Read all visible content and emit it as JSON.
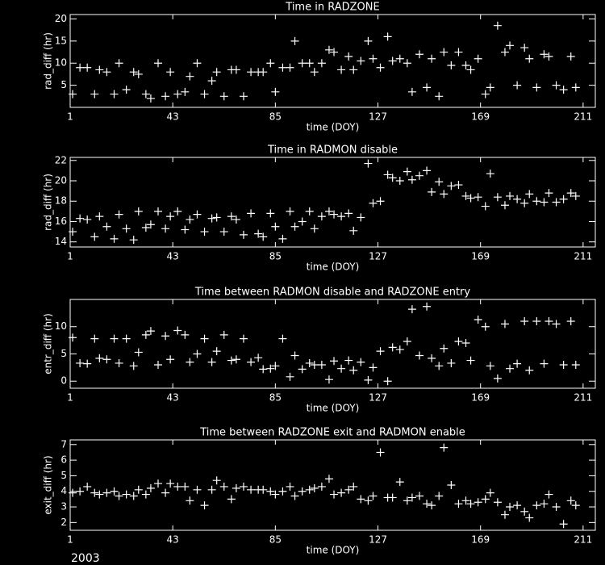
{
  "chart_data": [
    {
      "type": "scatter",
      "title": "Time in RADZONE",
      "x_label": "time (DOY)",
      "y_label": "rad_diff (hr)",
      "xlim": [
        1,
        216
      ],
      "xticks": [
        1,
        43,
        85,
        127,
        169,
        211
      ],
      "ylim": [
        0,
        21
      ],
      "yticks": [
        5,
        10,
        15,
        20
      ],
      "color": "#ffffff",
      "x": [
        2,
        5,
        8,
        11,
        13,
        16,
        19,
        21,
        24,
        27,
        29,
        32,
        34,
        37,
        40,
        42,
        45,
        48,
        50,
        53,
        56,
        59,
        61,
        64,
        67,
        69,
        72,
        75,
        78,
        80,
        83,
        85,
        88,
        91,
        93,
        96,
        99,
        101,
        104,
        107,
        109,
        112,
        115,
        117,
        120,
        123,
        125,
        128,
        131,
        133,
        136,
        139,
        141,
        144,
        147,
        149,
        152,
        154,
        157,
        160,
        163,
        165,
        168,
        171,
        173,
        176,
        179,
        181,
        184,
        187,
        189,
        192,
        195,
        197,
        200,
        203,
        206,
        208
      ],
      "values": [
        3,
        9,
        9,
        3,
        8.5,
        8,
        3,
        10,
        4,
        8,
        7.5,
        3,
        2,
        10,
        2.5,
        8,
        3,
        3.5,
        7,
        10,
        3,
        6,
        8,
        2.5,
        8.5,
        8.5,
        2.5,
        8,
        8,
        8,
        10,
        3.5,
        9,
        9,
        15,
        10,
        10,
        8,
        10,
        13,
        12.5,
        8.5,
        11.5,
        8.5,
        10.5,
        15,
        11,
        9,
        16,
        10.5,
        11,
        10,
        3.5,
        12,
        4.5,
        11,
        2.5,
        12.5,
        9.5,
        12.5,
        9.5,
        8.5,
        11,
        3,
        4.5,
        18.5,
        12.5,
        14,
        5,
        13.5,
        11,
        4.5,
        12,
        11.5,
        5,
        4,
        11.5,
        4.5
      ]
    },
    {
      "type": "scatter",
      "title": "Time in RADMON disable",
      "x_label": "time (DOY)",
      "y_label": "rad_diff (hr)",
      "xlim": [
        1,
        216
      ],
      "xticks": [
        1,
        43,
        85,
        127,
        169,
        211
      ],
      "ylim": [
        13.5,
        22.3
      ],
      "yticks": [
        14,
        16,
        18,
        20,
        22
      ],
      "color": "#ffffff",
      "x": [
        2,
        5,
        8,
        11,
        13,
        16,
        19,
        21,
        24,
        27,
        29,
        32,
        34,
        37,
        40,
        42,
        45,
        48,
        50,
        53,
        56,
        59,
        61,
        64,
        67,
        69,
        72,
        75,
        78,
        80,
        83,
        85,
        88,
        91,
        93,
        96,
        99,
        101,
        104,
        107,
        109,
        112,
        115,
        117,
        120,
        123,
        125,
        128,
        131,
        133,
        136,
        139,
        141,
        144,
        147,
        149,
        152,
        154,
        157,
        160,
        163,
        165,
        168,
        171,
        173,
        176,
        179,
        181,
        184,
        187,
        189,
        192,
        195,
        197,
        200,
        203,
        206,
        208
      ],
      "values": [
        15,
        16.3,
        16.2,
        14.5,
        16.5,
        15.5,
        14.3,
        16.7,
        15.3,
        14.2,
        17,
        15.4,
        15.7,
        17,
        15.3,
        16.5,
        17,
        15.2,
        16.2,
        16.7,
        15,
        16.3,
        16.4,
        15,
        16.5,
        16.2,
        14.7,
        16.8,
        14.8,
        14.5,
        16.8,
        15.5,
        14.3,
        17,
        15.5,
        16,
        17,
        15.3,
        16.5,
        17,
        16.7,
        16.5,
        16.8,
        15.1,
        16.4,
        21.7,
        17.8,
        18,
        20.6,
        20.3,
        20,
        20.9,
        20.1,
        20.5,
        21,
        18.9,
        19.9,
        18.7,
        19.5,
        19.6,
        18.5,
        18.3,
        18.4,
        17.5,
        20.7,
        18.4,
        17.6,
        18.5,
        18.2,
        17.8,
        18.7,
        18,
        17.9,
        18.8,
        17.9,
        18.2,
        18.8,
        18.5
      ]
    },
    {
      "type": "scatter",
      "title": "Time between RADMON disable and RADZONE entry",
      "x_label": "time (DOY)",
      "y_label": "entr_diff (hr)",
      "xlim": [
        1,
        216
      ],
      "xticks": [
        1,
        43,
        85,
        127,
        169,
        211
      ],
      "ylim": [
        -1.3,
        15
      ],
      "yticks": [
        0,
        5,
        10
      ],
      "color": "#ffffff",
      "x": [
        2,
        5,
        8,
        11,
        13,
        16,
        19,
        21,
        24,
        27,
        29,
        32,
        34,
        37,
        40,
        42,
        45,
        48,
        50,
        53,
        56,
        59,
        61,
        64,
        67,
        69,
        72,
        75,
        78,
        80,
        83,
        85,
        88,
        91,
        93,
        96,
        99,
        101,
        104,
        107,
        109,
        112,
        115,
        117,
        120,
        123,
        125,
        128,
        131,
        133,
        136,
        139,
        141,
        144,
        147,
        149,
        152,
        154,
        157,
        160,
        163,
        165,
        168,
        171,
        173,
        176,
        179,
        181,
        184,
        187,
        189,
        192,
        195,
        197,
        200,
        203,
        206,
        208
      ],
      "values": [
        8,
        3.3,
        3.2,
        7.8,
        4.2,
        4,
        7.8,
        3.3,
        7.8,
        2.8,
        5.3,
        8.5,
        9.2,
        3,
        8.3,
        4,
        9.3,
        8.5,
        3.5,
        5,
        7.8,
        3.5,
        5.5,
        8.5,
        3.8,
        4,
        7.8,
        3.5,
        4.3,
        2.2,
        2.3,
        2.8,
        7.8,
        0.8,
        4.7,
        2.2,
        3.3,
        3,
        3,
        0.3,
        3.7,
        2.3,
        3.8,
        2,
        3.5,
        0.2,
        2.5,
        5.5,
        0,
        6.2,
        5.8,
        7.3,
        13.2,
        4.7,
        13.7,
        4.2,
        2.8,
        6,
        3.3,
        7.3,
        7,
        3.8,
        11.3,
        10,
        2.8,
        0.5,
        10.5,
        2.3,
        3.2,
        11,
        2,
        11,
        3.2,
        11,
        10.5,
        3,
        11,
        3
      ]
    },
    {
      "type": "scatter",
      "title": "Time between RADZONE exit and RADMON enable",
      "x_label": "time (DOY)",
      "y_label": "exit_diff (hr)",
      "xlim": [
        1,
        216
      ],
      "xticks": [
        1,
        43,
        85,
        127,
        169,
        211
      ],
      "ylim": [
        1.5,
        7.3
      ],
      "yticks": [
        2,
        3,
        4,
        5,
        6,
        7
      ],
      "color": "#ffffff",
      "x": [
        2,
        5,
        8,
        11,
        13,
        16,
        19,
        21,
        24,
        27,
        29,
        32,
        34,
        37,
        40,
        42,
        45,
        48,
        50,
        53,
        56,
        59,
        61,
        64,
        67,
        69,
        72,
        75,
        78,
        80,
        83,
        85,
        88,
        91,
        93,
        96,
        99,
        101,
        104,
        107,
        109,
        112,
        115,
        117,
        120,
        123,
        125,
        128,
        131,
        133,
        136,
        139,
        141,
        144,
        147,
        149,
        152,
        154,
        157,
        160,
        163,
        165,
        168,
        171,
        173,
        176,
        179,
        181,
        184,
        187,
        189,
        192,
        195,
        197,
        200,
        203,
        206,
        208
      ],
      "values": [
        3.9,
        4,
        4.3,
        3.9,
        3.8,
        3.9,
        4,
        3.7,
        3.8,
        3.7,
        4.1,
        3.8,
        4.2,
        4.5,
        3.9,
        4.5,
        4.3,
        4.3,
        3.4,
        4.1,
        3.1,
        4.1,
        4.7,
        4.3,
        3.5,
        4.2,
        4.3,
        4.1,
        4.1,
        4.1,
        4,
        3.8,
        4,
        4.3,
        3.7,
        4,
        4.1,
        4.2,
        4.3,
        4.8,
        3.8,
        3.9,
        4.1,
        4.3,
        3.5,
        3.4,
        3.7,
        6.5,
        3.6,
        3.6,
        4.6,
        3.4,
        3.6,
        3.7,
        3.2,
        3.1,
        3.7,
        6.8,
        4.4,
        3.2,
        3.4,
        3.2,
        3.3,
        3.5,
        3.9,
        3.3,
        2.5,
        3,
        3.1,
        2.7,
        2.3,
        3.1,
        3.2,
        3.8,
        3,
        1.9,
        3.4,
        3.1
      ]
    }
  ],
  "footer": "2003"
}
